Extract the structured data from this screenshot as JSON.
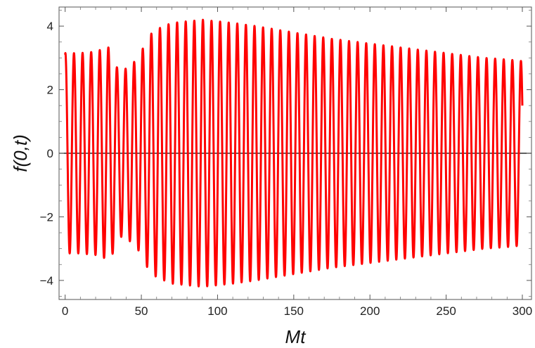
{
  "chart_data": {
    "type": "line",
    "xlabel": "Mt",
    "ylabel": "f(0,t)",
    "xlim": [
      -4,
      306
    ],
    "ylim": [
      -4.6,
      4.6
    ],
    "x_ticks": [
      0,
      50,
      100,
      150,
      200,
      250,
      300
    ],
    "y_ticks": [
      -4,
      -2,
      0,
      2,
      4
    ],
    "x_tick_labels": [
      "0",
      "50",
      "100",
      "150",
      "200",
      "250",
      "300"
    ],
    "y_tick_labels": [
      "-4",
      "-2",
      "0",
      "2",
      "4"
    ],
    "grid": false,
    "zero_line": true,
    "series": [
      {
        "color": "#ff0000",
        "period": 5.64,
        "x_start": 0,
        "x_end": 300,
        "end_value": 1.5,
        "amplitude_envelope": {
          "x": [
            0,
            10,
            20,
            26,
            30,
            34,
            38,
            42,
            46,
            50,
            55,
            60,
            65,
            70,
            80,
            90,
            100,
            110,
            125,
            150,
            175,
            200,
            225,
            250,
            275,
            290,
            300
          ],
          "a": [
            3.15,
            3.15,
            3.2,
            3.3,
            3.35,
            2.7,
            2.6,
            2.75,
            2.9,
            3.2,
            3.7,
            3.9,
            4.0,
            4.1,
            4.15,
            4.2,
            4.15,
            4.1,
            4.0,
            3.8,
            3.6,
            3.45,
            3.3,
            3.15,
            3.0,
            2.95,
            2.9
          ]
        }
      }
    ]
  }
}
